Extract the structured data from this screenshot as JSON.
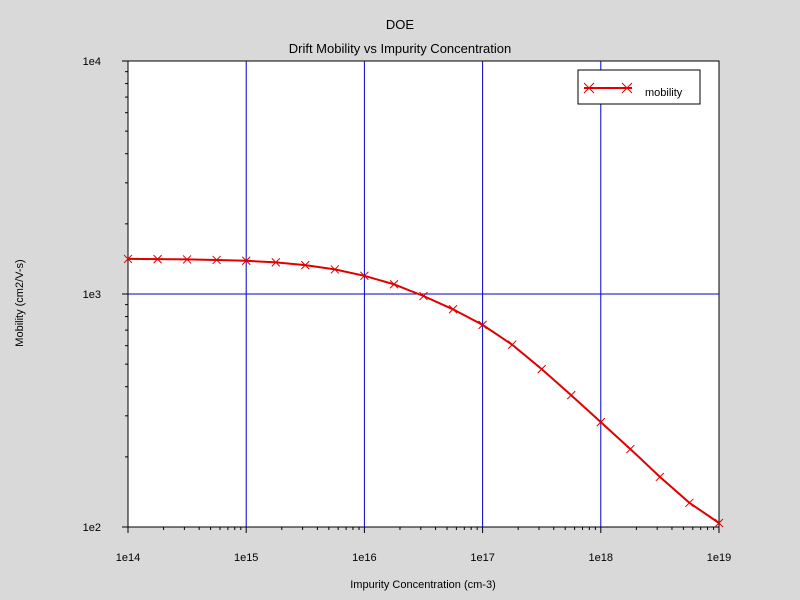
{
  "header": {
    "app_title": "DOE"
  },
  "chart_data": {
    "type": "line",
    "title": "Drift Mobility vs Impurity Concentration",
    "xlabel": "Impurity Concentration (cm-3)",
    "ylabel": "Mobility (cm2/V-s)",
    "xscale": "log",
    "yscale": "log",
    "xlim": [
      100000000000000.0,
      1e+19
    ],
    "ylim": [
      100,
      10000
    ],
    "x_tick_labels": [
      "1e14",
      "1e15",
      "1e16",
      "1e17",
      "1e18",
      "1e19"
    ],
    "y_tick_labels": [
      "1e2",
      "1e3",
      "1e4"
    ],
    "grid": "major",
    "legend_position": "top-right",
    "colors": {
      "series": "#e00000",
      "grid": "#0000cc",
      "plot_background": "#ffffff",
      "page_background": "#d9d9d9"
    },
    "series": [
      {
        "name": "mobility",
        "marker": "x",
        "x": [
          100000000000000.0,
          178000000000000.0,
          316000000000000.0,
          562000000000000.0,
          1000000000000000.0,
          1780000000000000.0,
          3160000000000000.0,
          5620000000000000.0,
          1e+16,
          1.78e+16,
          3.16e+16,
          5.62e+16,
          1e+17,
          1.78e+17,
          3.16e+17,
          5.62e+17,
          1e+18,
          1.78e+18,
          3.16e+18,
          5.62e+18,
          1e+19
        ],
        "y": [
          1414,
          1412,
          1407,
          1400,
          1389,
          1367,
          1330,
          1275,
          1197,
          1101,
          980,
          860,
          737,
          606,
          476,
          368,
          282,
          216,
          164,
          127,
          104
        ]
      }
    ]
  }
}
